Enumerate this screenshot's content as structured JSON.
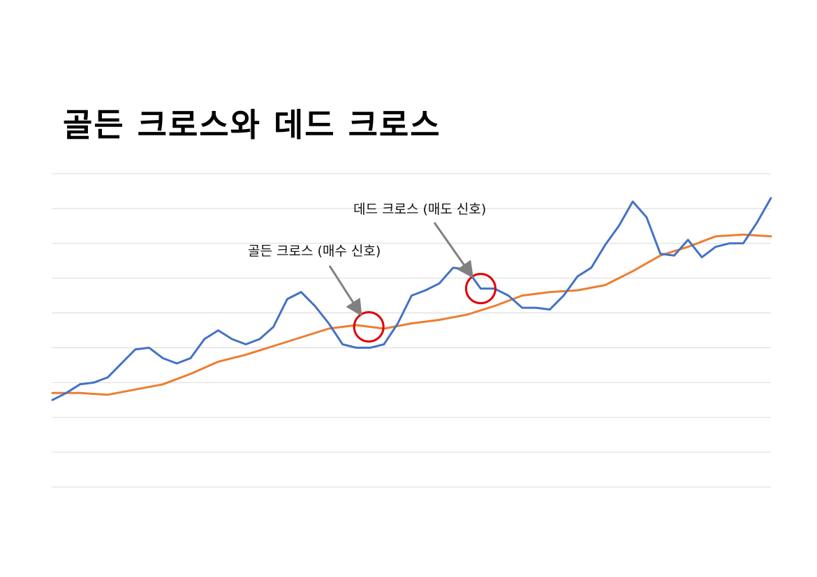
{
  "title": "골든 크로스와 데드 크로스",
  "chart_data": {
    "type": "line",
    "title": "골든 크로스와 데드 크로스",
    "xlabel": "",
    "ylabel": "",
    "ylim": [
      0,
      9
    ],
    "grid": true,
    "gridline_count": 10,
    "colors": {
      "short": "#4472C4",
      "long": "#ED7D31",
      "marker": "#E00000",
      "arrow": "#808080"
    },
    "series": [
      {
        "key": "short",
        "values": [
          [
            0,
            2.5
          ],
          [
            1,
            2.7
          ],
          [
            2,
            2.95
          ],
          [
            3,
            3.0
          ],
          [
            4,
            3.15
          ],
          [
            5,
            3.55
          ],
          [
            6,
            3.95
          ],
          [
            7,
            4.0
          ],
          [
            8,
            3.7
          ],
          [
            9,
            3.55
          ],
          [
            10,
            3.7
          ],
          [
            11,
            4.25
          ],
          [
            12,
            4.5
          ],
          [
            13,
            4.25
          ],
          [
            14,
            4.1
          ],
          [
            15,
            4.25
          ],
          [
            16,
            4.6
          ],
          [
            17,
            5.4
          ],
          [
            18,
            5.6
          ],
          [
            19,
            5.2
          ],
          [
            20,
            4.7
          ],
          [
            21,
            4.1
          ],
          [
            22,
            4.0
          ],
          [
            23,
            4.0
          ],
          [
            24,
            4.1
          ],
          [
            25,
            4.7
          ],
          [
            26,
            5.5
          ],
          [
            27,
            5.65
          ],
          [
            28,
            5.85
          ],
          [
            29,
            6.3
          ],
          [
            30,
            6.25
          ],
          [
            31,
            5.7
          ],
          [
            32,
            5.7
          ],
          [
            33,
            5.5
          ],
          [
            34,
            5.15
          ],
          [
            35,
            5.15
          ],
          [
            36,
            5.1
          ],
          [
            37,
            5.5
          ],
          [
            38,
            6.05
          ],
          [
            39,
            6.3
          ],
          [
            40,
            6.95
          ],
          [
            41,
            7.5
          ],
          [
            42,
            8.2
          ],
          [
            43,
            7.75
          ],
          [
            44,
            6.7
          ],
          [
            45,
            6.65
          ],
          [
            46,
            7.1
          ],
          [
            47,
            6.6
          ],
          [
            48,
            6.9
          ],
          [
            49,
            7.0
          ],
          [
            50,
            7.0
          ],
          [
            51,
            7.6
          ],
          [
            52,
            8.3
          ]
        ]
      },
      {
        "key": "long",
        "values": [
          [
            0,
            2.7
          ],
          [
            2,
            2.7
          ],
          [
            4,
            2.65
          ],
          [
            6,
            2.8
          ],
          [
            8,
            2.95
          ],
          [
            10,
            3.25
          ],
          [
            12,
            3.6
          ],
          [
            14,
            3.8
          ],
          [
            16,
            4.05
          ],
          [
            18,
            4.3
          ],
          [
            20,
            4.55
          ],
          [
            22,
            4.65
          ],
          [
            24,
            4.55
          ],
          [
            26,
            4.7
          ],
          [
            28,
            4.8
          ],
          [
            30,
            4.95
          ],
          [
            32,
            5.2
          ],
          [
            34,
            5.5
          ],
          [
            36,
            5.6
          ],
          [
            38,
            5.65
          ],
          [
            40,
            5.8
          ],
          [
            42,
            6.2
          ],
          [
            44,
            6.65
          ],
          [
            46,
            6.9
          ],
          [
            48,
            7.2
          ],
          [
            50,
            7.25
          ],
          [
            52,
            7.2
          ]
        ]
      }
    ],
    "annotations": [
      {
        "text": "골든 크로스 (매수 신호)",
        "x": 22.9,
        "y": 4.6
      },
      {
        "text": "데드 크로스 (매도 신호)",
        "x": 31.0,
        "y": 5.7
      }
    ]
  }
}
